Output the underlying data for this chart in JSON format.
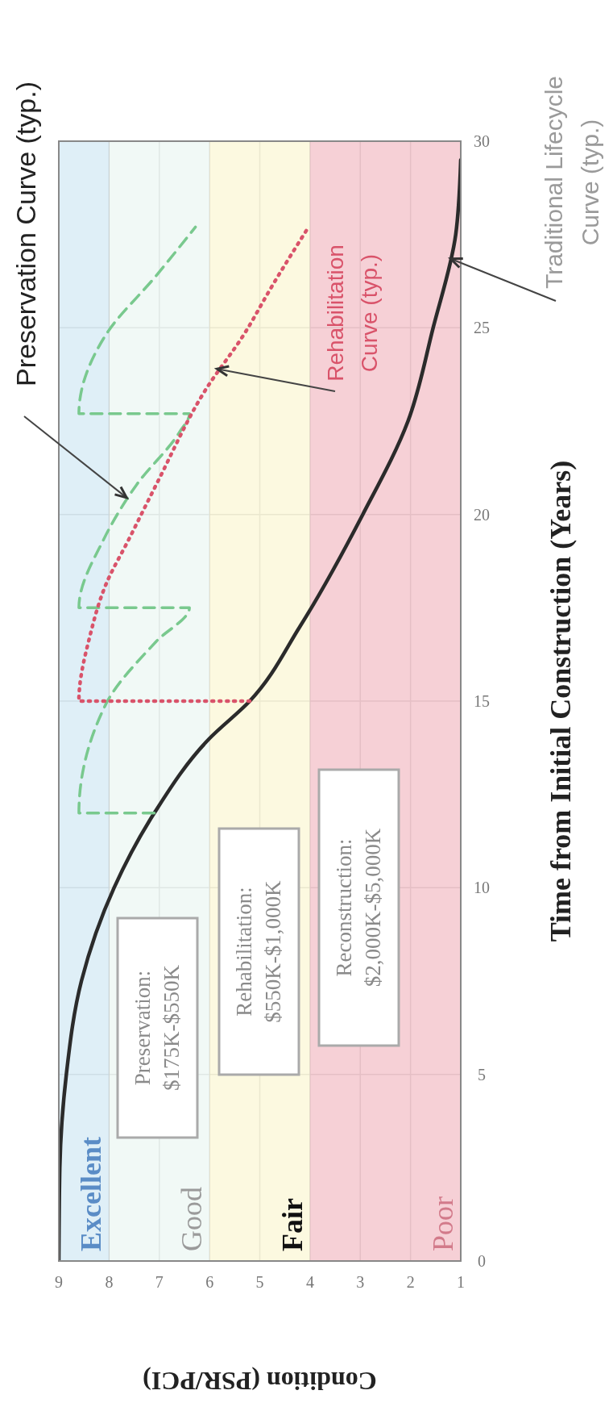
{
  "chart_data": {
    "type": "line",
    "xlabel": "Condition (PSR/PCI)",
    "ylabel": "Time from Initial Construction (Years)",
    "xlim": [
      9,
      1
    ],
    "xticks": [
      9,
      8,
      7,
      6,
      5,
      4,
      3,
      2,
      1
    ],
    "ylim": [
      0,
      30
    ],
    "yticks": [
      0,
      5,
      10,
      15,
      20,
      25,
      30
    ],
    "grid": true,
    "marker": "none",
    "series": [
      {
        "color": "#2b2b2b",
        "line_style": "solid",
        "values": [
          0,
          2.5,
          5,
          7.5,
          10,
          12,
          14,
          15,
          17,
          20,
          22.5,
          25,
          27.5,
          29.5
        ],
        "x": [
          9,
          8.98,
          8.85,
          8.55,
          7.9,
          7.1,
          6.0,
          5.2,
          4.2,
          2.95,
          2.05,
          1.55,
          1.1,
          1.0
        ]
      },
      {
        "color": "#79c98e",
        "line_style": "dashed",
        "values": [
          12,
          12,
          14.9,
          16.6,
          17.5,
          17.5,
          19.35,
          20.8,
          22.2,
          22.7,
          22.7,
          24.8,
          26.4,
          27.7
        ],
        "x": [
          7.1,
          8.6,
          8.07,
          7.06,
          6.4,
          8.6,
          8.1,
          7.45,
          6.6,
          6.4,
          8.6,
          8.07,
          7.06,
          6.28
        ]
      },
      {
        "color": "#d9536a",
        "line_style": "dotted",
        "values": [
          15,
          15,
          16.8,
          18.1,
          19.35,
          20.8,
          23.4,
          24.75,
          26.2,
          27.7
        ],
        "x": [
          5.2,
          8.6,
          8.37,
          8.07,
          7.6,
          7.06,
          6.05,
          5.35,
          4.72,
          4.03
        ]
      }
    ],
    "bands": [
      {
        "axis": "x",
        "from": 8,
        "to": 9,
        "label": "Excellent",
        "color": "#d9ecf6"
      },
      {
        "axis": "x",
        "from": 6,
        "to": 8,
        "label": "Good",
        "color": "#eef8f5"
      },
      {
        "axis": "x",
        "from": 4,
        "to": 6,
        "label": "Fair",
        "color": "#fbf8da"
      },
      {
        "axis": "x",
        "from": 1,
        "to": 4,
        "label": "Poor",
        "color": "#f4c8cf"
      }
    ],
    "annotations": [
      {
        "text": "Preservation Curve (typ.)",
        "x": 7.65,
        "y": 20.45
      },
      {
        "text": "Rehabilitation\nCurve (typ.)",
        "x": 5.85,
        "y": 23.9
      },
      {
        "text": "Traditional Lifecycle\nCurve (typ.)",
        "x": 1.2,
        "y": 26.85
      },
      "Preservation:\n$175K-$550K",
      "Rehabilitation:\n$550K-$1,000K",
      "Reconstruction:\n$2,000K-$5,000K"
    ]
  }
}
